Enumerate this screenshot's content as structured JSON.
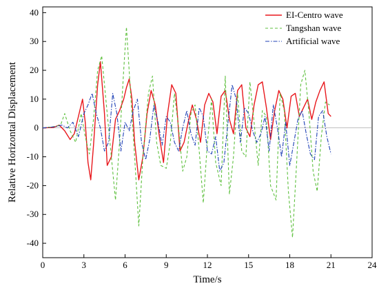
{
  "chart_data": {
    "type": "line",
    "xlabel": "Time/s",
    "ylabel": "Relative Horizontal Displacement",
    "xlim": [
      0,
      24
    ],
    "ylim": [
      -45,
      42
    ],
    "x_ticks": [
      0,
      3,
      6,
      9,
      12,
      15,
      18,
      21,
      24
    ],
    "y_ticks": [
      -40,
      -30,
      -20,
      -10,
      0,
      10,
      20,
      30,
      40
    ],
    "grid": false,
    "legend_position": "top-right",
    "series": [
      {
        "name": "EI-Centro wave",
        "color": "#e8161b",
        "style": "solid",
        "x": [
          0,
          0.8,
          1.2,
          1.6,
          2.0,
          2.3,
          2.6,
          2.9,
          3.1,
          3.3,
          3.5,
          3.7,
          4.0,
          4.2,
          4.5,
          4.7,
          5.0,
          5.3,
          5.6,
          5.9,
          6.1,
          6.3,
          6.5,
          6.7,
          7.0,
          7.3,
          7.6,
          7.9,
          8.2,
          8.5,
          8.8,
          9.1,
          9.4,
          9.7,
          10.0,
          10.3,
          10.6,
          10.9,
          11.2,
          11.5,
          11.8,
          12.1,
          12.4,
          12.7,
          13.0,
          13.3,
          13.6,
          13.9,
          14.2,
          14.5,
          14.8,
          15.1,
          15.4,
          15.7,
          16.0,
          16.3,
          16.6,
          16.9,
          17.2,
          17.5,
          17.8,
          18.1,
          18.4,
          18.7,
          19.0,
          19.3,
          19.6,
          19.9,
          20.2,
          20.5,
          20.8,
          21.0
        ],
        "y": [
          0,
          0.2,
          1,
          -1,
          -4,
          -2,
          4,
          10,
          2,
          -12,
          -18,
          -6,
          15,
          23,
          5,
          -13,
          -10,
          3,
          6,
          10,
          14,
          17,
          10,
          -5,
          -18,
          -10,
          5,
          13,
          8,
          -3,
          -12,
          5,
          15,
          12,
          -8,
          -5,
          2,
          8,
          3,
          -5,
          8,
          12,
          9,
          -2,
          11,
          13,
          3,
          -2,
          13,
          15,
          0,
          -3,
          8,
          15,
          16,
          7,
          -4,
          6,
          13,
          10,
          0,
          11,
          12,
          4,
          7,
          10,
          3,
          9,
          13,
          16,
          5,
          4
        ]
      },
      {
        "name": "Tangshan wave",
        "color": "#5cbf3c",
        "style": "dashed",
        "x": [
          0,
          0.9,
          1.3,
          1.6,
          2.0,
          2.4,
          2.8,
          3.1,
          3.4,
          3.7,
          4.0,
          4.3,
          4.6,
          5.0,
          5.3,
          5.6,
          5.9,
          6.1,
          6.4,
          6.7,
          7.0,
          7.3,
          7.7,
          8.0,
          8.3,
          8.6,
          9.0,
          9.3,
          9.6,
          9.9,
          10.2,
          10.5,
          10.8,
          11.1,
          11.4,
          11.7,
          12.0,
          12.3,
          12.6,
          13.0,
          13.3,
          13.6,
          13.9,
          14.2,
          14.5,
          14.8,
          15.1,
          15.4,
          15.7,
          16.0,
          16.3,
          16.6,
          17.0,
          17.3,
          17.6,
          17.9,
          18.2,
          18.5,
          18.8,
          19.1,
          19.4,
          19.7,
          20.0,
          20.3,
          20.6,
          20.9
        ],
        "y": [
          0,
          0.5,
          1,
          5,
          -1,
          -5,
          5,
          -3,
          -9,
          3,
          20,
          25,
          10,
          -10,
          -25,
          -5,
          20,
          35,
          12,
          -10,
          -34,
          -10,
          12,
          18,
          -5,
          -13,
          -14,
          -5,
          12,
          0,
          -15,
          -10,
          5,
          8,
          -8,
          -26,
          -5,
          10,
          -12,
          -20,
          18,
          -23,
          -10,
          12,
          -8,
          -10,
          16,
          2,
          -13,
          6,
          4,
          -20,
          -25,
          12,
          6,
          -22,
          -38,
          -12,
          15,
          20,
          5,
          -15,
          -22,
          -3,
          9,
          8
        ]
      },
      {
        "name": "Artificial wave",
        "color": "#1c3fb5",
        "style": "dashdot",
        "x": [
          0,
          1.0,
          1.4,
          1.8,
          2.2,
          2.6,
          3.0,
          3.3,
          3.6,
          3.9,
          4.2,
          4.5,
          4.8,
          5.1,
          5.4,
          5.7,
          6.0,
          6.3,
          6.6,
          6.9,
          7.2,
          7.5,
          7.8,
          8.1,
          8.4,
          8.7,
          9.0,
          9.3,
          9.6,
          9.9,
          10.2,
          10.5,
          10.8,
          11.1,
          11.4,
          11.7,
          12.0,
          12.3,
          12.6,
          12.9,
          13.2,
          13.5,
          13.8,
          14.1,
          14.4,
          14.7,
          15.0,
          15.3,
          15.6,
          15.9,
          16.2,
          16.5,
          16.8,
          17.1,
          17.4,
          17.7,
          18.0,
          18.3,
          18.6,
          18.9,
          19.2,
          19.5,
          19.8,
          20.1,
          20.4,
          20.7,
          21.0
        ],
        "y": [
          0,
          0.5,
          1,
          0,
          2,
          -3,
          5,
          8,
          12,
          5,
          0,
          -8,
          -5,
          12,
          5,
          -8,
          2,
          -1,
          6,
          10,
          -5,
          -11,
          -4,
          8,
          2,
          -6,
          4,
          2,
          -5,
          -8,
          0,
          6,
          -2,
          -6,
          7,
          4,
          -8,
          -9,
          -3,
          -15,
          -12,
          2,
          15,
          10,
          -5,
          7,
          5,
          -1,
          -5,
          -2,
          4,
          -8,
          8,
          0,
          -10,
          2,
          -13,
          -5,
          3,
          6,
          -2,
          -9,
          -11,
          4,
          6,
          -3,
          -9
        ]
      }
    ]
  }
}
